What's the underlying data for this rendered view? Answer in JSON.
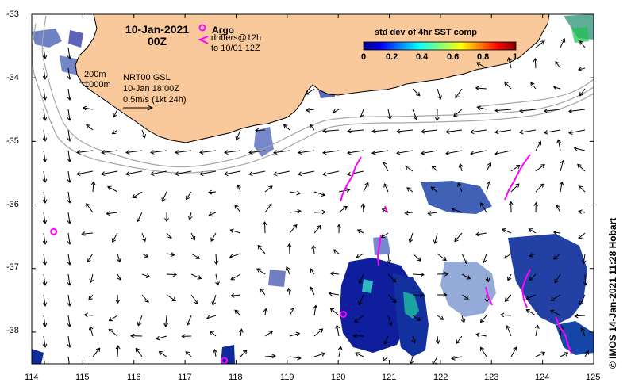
{
  "header": {
    "date": "10-Jan-2021",
    "hour": "00Z",
    "argo_label": "Argo",
    "drifters_line1": "drifters@12h",
    "drifters_line2": "to 10/01 12Z"
  },
  "bathymetry": {
    "contour_200": "200m",
    "contour_1000": "1000m"
  },
  "product": {
    "line1": "NRT00 GSL",
    "line2": "10-Jan 18:00Z",
    "line3": "0.5m/s (1kt 24h)"
  },
  "colorbar": {
    "title": "std dev of 4hr SST comp",
    "ticks": [
      "0",
      "0.2",
      "0.4",
      "0.6",
      "0.8",
      "1"
    ],
    "range": [
      0,
      1
    ]
  },
  "axes": {
    "lon_ticks": [
      "114",
      "115",
      "116",
      "117",
      "118",
      "119",
      "120",
      "121",
      "122",
      "123",
      "124",
      "125"
    ],
    "lat_ticks": [
      "-33",
      "-34",
      "-35",
      "-36",
      "-37",
      "-38"
    ],
    "lon_range": [
      114,
      125
    ],
    "lat_range": [
      -38.5,
      -33
    ]
  },
  "credit": "© IMOS 14-Jan-2021 11:28 Hobart",
  "colors": {
    "land": "#f9c89b",
    "argo": "#ff00ff",
    "drifter": "#ff00ff",
    "contour": "#a6a6a6",
    "arrow": "#000000",
    "sst_low": "#00007f",
    "sst_high": "#7f0000"
  },
  "argo_floats": [
    {
      "lon": 114.43,
      "lat": -36.42
    },
    {
      "lon": 120.1,
      "lat": -37.72
    },
    {
      "lon": 117.77,
      "lat": -38.45
    }
  ]
}
